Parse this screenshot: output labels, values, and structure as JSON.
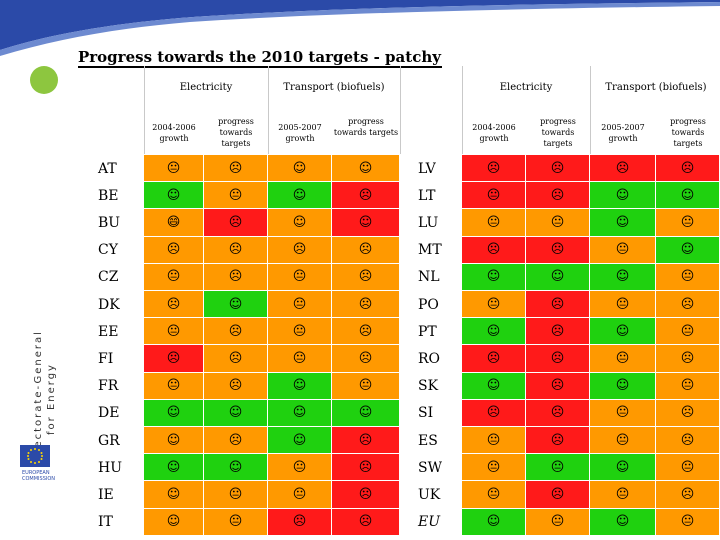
{
  "title": "Progress towards the 2010 targets - patchy",
  "sidebar": {
    "directorate": "Directorate-General",
    "energy": "for Energy",
    "commission": "EUROPEAN COMMISSION"
  },
  "headers": {
    "left_group1": "Electricity",
    "left_group2": "Transport (biofuels)",
    "right_group1": "Electricity",
    "right_group2": "Transport (biofuels)",
    "sub1": "2004-2006 growth",
    "sub2": "progress towards targets",
    "sub3": "2005-2007 growth",
    "sub4": "progress towards targets"
  },
  "colors": {
    "red": "#ff1a1a",
    "orange": "#ff9900",
    "green": "#1fd10f",
    "blue_accent": "#2b4aa8",
    "green_dot": "#8dc63f"
  },
  "rows": [
    {
      "left": {
        "c": "AT",
        "v": [
          [
            "😐",
            "orange"
          ],
          [
            "☹",
            "orange"
          ],
          [
            "☺",
            "orange"
          ],
          [
            "☺",
            "orange"
          ]
        ]
      },
      "right": {
        "c": "LV",
        "v": [
          [
            "☹",
            "red"
          ],
          [
            "☹",
            "red"
          ],
          [
            "☹",
            "red"
          ],
          [
            "☹",
            "red"
          ]
        ]
      }
    },
    {
      "left": {
        "c": "BE",
        "v": [
          [
            "☺",
            "green"
          ],
          [
            "😐",
            "orange"
          ],
          [
            "☺",
            "green"
          ],
          [
            "☹",
            "red"
          ]
        ]
      },
      "right": {
        "c": "LT",
        "v": [
          [
            "😐",
            "red"
          ],
          [
            "☹",
            "red"
          ],
          [
            "☺",
            "green"
          ],
          [
            "☺",
            "green"
          ]
        ]
      }
    },
    {
      "left": {
        "c": "BU",
        "v": [
          [
            "😄",
            "orange"
          ],
          [
            "☹",
            "red"
          ],
          [
            "☺",
            "orange"
          ],
          [
            "☺",
            "red"
          ]
        ]
      },
      "right": {
        "c": "LU",
        "v": [
          [
            "😐",
            "orange"
          ],
          [
            "😐",
            "orange"
          ],
          [
            "☺",
            "green"
          ],
          [
            "😐",
            "orange"
          ]
        ]
      }
    },
    {
      "left": {
        "c": "CY",
        "v": [
          [
            "☹",
            "orange"
          ],
          [
            "☹",
            "orange"
          ],
          [
            "☹",
            "orange"
          ],
          [
            "☹",
            "orange"
          ]
        ]
      },
      "right": {
        "c": "MT",
        "v": [
          [
            "☹",
            "red"
          ],
          [
            "☹",
            "red"
          ],
          [
            "😐",
            "orange"
          ],
          [
            "☺",
            "green"
          ]
        ]
      }
    },
    {
      "left": {
        "c": "CZ",
        "v": [
          [
            "😐",
            "orange"
          ],
          [
            "☹",
            "orange"
          ],
          [
            "😐",
            "orange"
          ],
          [
            "☹",
            "orange"
          ]
        ]
      },
      "right": {
        "c": "NL",
        "v": [
          [
            "☺",
            "green"
          ],
          [
            "☺",
            "green"
          ],
          [
            "☺",
            "green"
          ],
          [
            "😐",
            "orange"
          ]
        ]
      }
    },
    {
      "left": {
        "c": "DK",
        "v": [
          [
            "☹",
            "orange"
          ],
          [
            "☺",
            "green"
          ],
          [
            "😐",
            "orange"
          ],
          [
            "☹",
            "orange"
          ]
        ]
      },
      "right": {
        "c": "PO",
        "v": [
          [
            "😐",
            "orange"
          ],
          [
            "☹",
            "red"
          ],
          [
            "😐",
            "orange"
          ],
          [
            "☹",
            "orange"
          ]
        ]
      }
    },
    {
      "left": {
        "c": "EE",
        "v": [
          [
            "😐",
            "orange"
          ],
          [
            "☹",
            "orange"
          ],
          [
            "😐",
            "orange"
          ],
          [
            "☹",
            "orange"
          ]
        ]
      },
      "right": {
        "c": "PT",
        "v": [
          [
            "☺",
            "green"
          ],
          [
            "☹",
            "red"
          ],
          [
            "☺",
            "green"
          ],
          [
            "😐",
            "orange"
          ]
        ]
      }
    },
    {
      "left": {
        "c": "FI",
        "v": [
          [
            "☹",
            "red"
          ],
          [
            "☹",
            "orange"
          ],
          [
            "😐",
            "orange"
          ],
          [
            "☹",
            "orange"
          ]
        ]
      },
      "right": {
        "c": "RO",
        "v": [
          [
            "☹",
            "red"
          ],
          [
            "☹",
            "red"
          ],
          [
            "😐",
            "orange"
          ],
          [
            "☹",
            "orange"
          ]
        ]
      }
    },
    {
      "left": {
        "c": "FR",
        "v": [
          [
            "😐",
            "orange"
          ],
          [
            "☹",
            "orange"
          ],
          [
            "☺",
            "green"
          ],
          [
            "😐",
            "orange"
          ]
        ]
      },
      "right": {
        "c": "SK",
        "v": [
          [
            "☺",
            "green"
          ],
          [
            "☹",
            "red"
          ],
          [
            "☺",
            "green"
          ],
          [
            "😐",
            "orange"
          ]
        ]
      }
    },
    {
      "left": {
        "c": "DE",
        "v": [
          [
            "☺",
            "green"
          ],
          [
            "☺",
            "green"
          ],
          [
            "☺",
            "green"
          ],
          [
            "☺",
            "green"
          ]
        ]
      },
      "right": {
        "c": "SI",
        "v": [
          [
            "☹",
            "red"
          ],
          [
            "☹",
            "red"
          ],
          [
            "😐",
            "orange"
          ],
          [
            "☹",
            "orange"
          ]
        ]
      }
    },
    {
      "left": {
        "c": "GR",
        "v": [
          [
            "☺",
            "orange"
          ],
          [
            "☹",
            "orange"
          ],
          [
            "☺",
            "green"
          ],
          [
            "☹",
            "red"
          ]
        ]
      },
      "right": {
        "c": "ES",
        "v": [
          [
            "😐",
            "orange"
          ],
          [
            "☹",
            "red"
          ],
          [
            "😐",
            "orange"
          ],
          [
            "☹",
            "orange"
          ]
        ]
      }
    },
    {
      "left": {
        "c": "HU",
        "v": [
          [
            "☺",
            "green"
          ],
          [
            "☺",
            "green"
          ],
          [
            "😐",
            "orange"
          ],
          [
            "☹",
            "red"
          ]
        ]
      },
      "right": {
        "c": "SW",
        "v": [
          [
            "😐",
            "orange"
          ],
          [
            "😐",
            "green"
          ],
          [
            "☺",
            "green"
          ],
          [
            "😐",
            "orange"
          ]
        ]
      }
    },
    {
      "left": {
        "c": "IE",
        "v": [
          [
            "☺",
            "orange"
          ],
          [
            "😐",
            "orange"
          ],
          [
            "😐",
            "orange"
          ],
          [
            "☹",
            "red"
          ]
        ]
      },
      "right": {
        "c": "UK",
        "v": [
          [
            "😐",
            "orange"
          ],
          [
            "☹",
            "red"
          ],
          [
            "😐",
            "orange"
          ],
          [
            "☹",
            "orange"
          ]
        ]
      }
    },
    {
      "left": {
        "c": "IT",
        "v": [
          [
            "☺",
            "orange"
          ],
          [
            "😐",
            "orange"
          ],
          [
            "☹",
            "red"
          ],
          [
            "☹",
            "red"
          ]
        ]
      },
      "right": {
        "c": "EU",
        "v": [
          [
            "☺",
            "green"
          ],
          [
            "😐",
            "orange"
          ],
          [
            "☺",
            "green"
          ],
          [
            "😐",
            "orange"
          ]
        ]
      }
    }
  ]
}
